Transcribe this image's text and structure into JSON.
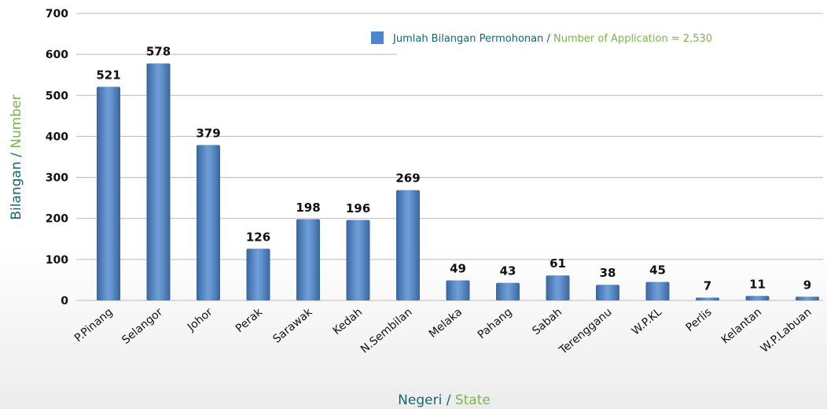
{
  "chart_data": {
    "type": "bar",
    "ylabel": {
      "malay": "Bilangan /",
      "english": "Number"
    },
    "xlabel": {
      "malay": "Negeri /",
      "english": "State"
    },
    "legend": {
      "malay": "Jumlah Bilangan Permohonan /",
      "english": "Number of Application = 2,530"
    },
    "categories": [
      "P.Pinang",
      "Selangor",
      "Johor",
      "Perak",
      "Sarawak",
      "Kedah",
      "N.Sembilan",
      "Melaka",
      "Pahang",
      "Sabah",
      "Terengganu",
      "W.P.KL",
      "Perlis",
      "Kelantan",
      "W.P.Labuan"
    ],
    "values": [
      521,
      578,
      379,
      126,
      198,
      196,
      269,
      49,
      43,
      61,
      38,
      45,
      7,
      11,
      9
    ],
    "color": "#4a86d0",
    "ylim": [
      0,
      700
    ],
    "yticks": [
      0,
      100,
      200,
      300,
      400,
      500,
      600,
      700
    ],
    "grid": true
  }
}
